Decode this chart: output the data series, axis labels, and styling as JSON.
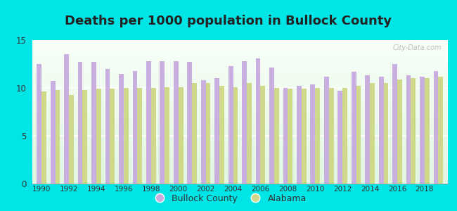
{
  "title": "Deaths per 1000 population in Bullock County",
  "background_color": "#00e5e5",
  "years": [
    1990,
    1991,
    1992,
    1993,
    1994,
    1995,
    1996,
    1997,
    1998,
    1999,
    2000,
    2001,
    2002,
    2003,
    2004,
    2005,
    2006,
    2007,
    2008,
    2009,
    2010,
    2011,
    2012,
    2013,
    2014,
    2015,
    2016,
    2017,
    2018,
    2019
  ],
  "bullock": [
    12.5,
    10.7,
    13.5,
    12.7,
    12.7,
    12.0,
    11.5,
    11.8,
    12.8,
    12.8,
    12.8,
    12.7,
    10.8,
    11.0,
    12.3,
    12.8,
    13.1,
    12.1,
    10.0,
    10.2,
    10.4,
    11.2,
    9.7,
    11.7,
    11.3,
    11.2,
    12.5,
    11.3,
    11.2,
    11.8
  ],
  "alabama": [
    9.6,
    9.8,
    9.3,
    9.8,
    9.9,
    9.9,
    10.0,
    10.0,
    10.0,
    10.1,
    10.1,
    10.5,
    10.5,
    10.2,
    10.1,
    10.5,
    10.2,
    10.0,
    9.9,
    9.9,
    10.0,
    10.0,
    10.0,
    10.2,
    10.5,
    10.5,
    10.9,
    11.0,
    11.0,
    11.2
  ],
  "bullock_color": "#c9aee0",
  "alabama_color": "#d0d98a",
  "ylim": [
    0,
    15
  ],
  "yticks": [
    0,
    5,
    10,
    15
  ],
  "title_fontsize": 13,
  "bar_width": 0.35,
  "watermark": "City-Data.com"
}
